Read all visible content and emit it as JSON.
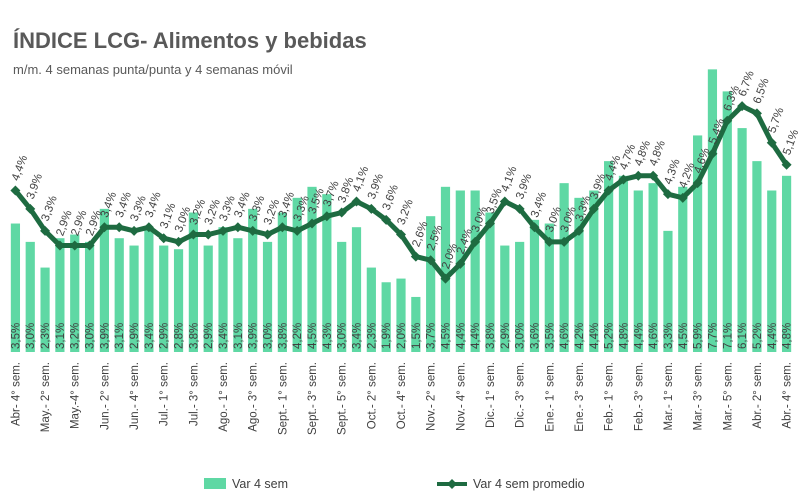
{
  "title": "ÍNDICE LCG- Alimentos y bebidas",
  "subtitle": "m/m. 4 semanas punta/punta y 4 semanas móvil",
  "colors": {
    "bar": "#5FD8A4",
    "line": "#1E6B41",
    "text": "#404040",
    "title": "#595959"
  },
  "chart_data": {
    "type": "bar",
    "ylim": [
      0,
      8.5
    ],
    "grid": false,
    "legend_position": "bottom",
    "categories": [
      "Abr- 4° sem.",
      "",
      "May.- 2° sem.",
      "",
      "May.-4° sem.",
      "",
      "Jun.- 2° sem.",
      "",
      "Jun.- 4° sem.",
      "",
      "Jul.- 1° sem.",
      "",
      "Jul.- 3° sem.",
      "",
      "Ago.- 1° sem.",
      "",
      "Ago.- 3° sem.",
      "",
      "Sept.- 1° sem.",
      "",
      "Sept.- 3° sem.",
      "",
      "Sept.- 5° sem.",
      "",
      "Oct.- 2° sem.",
      "",
      "Oct.- 4° sem.",
      "",
      "Nov.- 2° sem.",
      "",
      "Nov.- 4° sem.",
      "",
      "Dic.- 1° sem.",
      "",
      "Dic.- 3° sem.",
      "",
      "Ene.- 1° sem.",
      "",
      "Ene.- 3° sem.",
      "",
      "Feb.- 1° sem.",
      "",
      "Feb.- 3° sem.",
      "",
      "Mar.- 1° sem.",
      "",
      "Mar.- 3° sem.",
      "",
      "Mar.- 5° sem.",
      "",
      "Abr.- 2° sem.",
      "",
      "Abr.- 4° sem."
    ],
    "series": [
      {
        "name": "Var 4 sem",
        "type": "bar",
        "values": [
          3.5,
          3.0,
          2.3,
          3.1,
          3.2,
          3.0,
          3.9,
          3.1,
          2.9,
          3.4,
          2.9,
          2.8,
          3.8,
          2.9,
          3.4,
          3.1,
          3.9,
          3.0,
          3.8,
          4.2,
          4.5,
          4.3,
          3.0,
          3.4,
          2.3,
          1.9,
          2.0,
          1.5,
          3.7,
          4.5,
          4.4,
          4.4,
          3.8,
          2.9,
          3.0,
          3.6,
          3.5,
          4.6,
          4.2,
          4.4,
          5.2,
          4.8,
          4.4,
          4.6,
          3.3,
          4.5,
          5.9,
          7.7,
          7.1,
          6.1,
          5.2,
          4.4,
          4.8
        ]
      },
      {
        "name": "Var 4 sem promedio",
        "type": "line",
        "values": [
          4.4,
          3.9,
          3.3,
          2.9,
          2.9,
          2.9,
          3.4,
          3.4,
          3.3,
          3.4,
          3.1,
          3.0,
          3.2,
          3.2,
          3.3,
          3.4,
          3.3,
          3.2,
          3.4,
          3.3,
          3.5,
          3.7,
          3.8,
          4.1,
          3.9,
          3.6,
          3.2,
          2.6,
          2.5,
          2.0,
          2.4,
          3.0,
          3.5,
          4.1,
          3.9,
          3.4,
          3.0,
          3.0,
          3.3,
          3.9,
          4.4,
          4.7,
          4.8,
          4.8,
          4.3,
          4.2,
          4.6,
          5.4,
          6.3,
          6.7,
          6.5,
          5.7,
          5.1
        ]
      }
    ]
  }
}
